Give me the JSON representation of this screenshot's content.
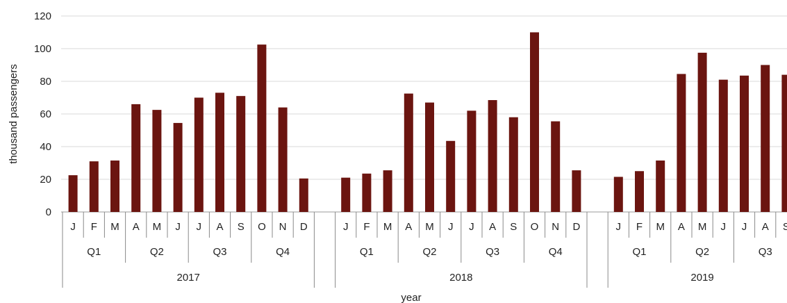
{
  "chart_data": {
    "type": "bar",
    "title": "",
    "xlabel": "year",
    "ylabel": "thousand passengers",
    "ylim": [
      0,
      120
    ],
    "yticks": [
      0,
      20,
      40,
      60,
      80,
      100,
      120
    ],
    "grid": true,
    "bar_color": "#6b1510",
    "grid_color": "#d9d9d9",
    "years": [
      {
        "label": "2017",
        "quarters": [
          {
            "label": "Q1",
            "months": [
              {
                "label": "J",
                "value": 22.5
              },
              {
                "label": "F",
                "value": 31
              },
              {
                "label": "M",
                "value": 31.5
              }
            ]
          },
          {
            "label": "Q2",
            "months": [
              {
                "label": "A",
                "value": 66
              },
              {
                "label": "M",
                "value": 62.5
              },
              {
                "label": "J",
                "value": 54.5
              }
            ]
          },
          {
            "label": "Q3",
            "months": [
              {
                "label": "J",
                "value": 70
              },
              {
                "label": "A",
                "value": 73
              },
              {
                "label": "S",
                "value": 71
              }
            ]
          },
          {
            "label": "Q4",
            "months": [
              {
                "label": "O",
                "value": 102.5
              },
              {
                "label": "N",
                "value": 64
              },
              {
                "label": "D",
                "value": 20.5
              }
            ]
          }
        ]
      },
      {
        "label": "2018",
        "quarters": [
          {
            "label": "Q1",
            "months": [
              {
                "label": "J",
                "value": 21
              },
              {
                "label": "F",
                "value": 23.5
              },
              {
                "label": "M",
                "value": 25.5
              }
            ]
          },
          {
            "label": "Q2",
            "months": [
              {
                "label": "A",
                "value": 72.5
              },
              {
                "label": "M",
                "value": 67
              },
              {
                "label": "J",
                "value": 43.5
              }
            ]
          },
          {
            "label": "Q3",
            "months": [
              {
                "label": "J",
                "value": 62
              },
              {
                "label": "A",
                "value": 68.5
              },
              {
                "label": "S",
                "value": 58
              }
            ]
          },
          {
            "label": "Q4",
            "months": [
              {
                "label": "O",
                "value": 110
              },
              {
                "label": "N",
                "value": 55.5
              },
              {
                "label": "D",
                "value": 25.5
              }
            ]
          }
        ]
      },
      {
        "label": "2019",
        "quarters": [
          {
            "label": "Q1",
            "months": [
              {
                "label": "J",
                "value": 21.5
              },
              {
                "label": "F",
                "value": 25
              },
              {
                "label": "M",
                "value": 31.5
              }
            ]
          },
          {
            "label": "Q2",
            "months": [
              {
                "label": "A",
                "value": 84.5
              },
              {
                "label": "M",
                "value": 97.5
              },
              {
                "label": "J",
                "value": 81
              }
            ]
          },
          {
            "label": "Q3",
            "months": [
              {
                "label": "J",
                "value": 83.5
              },
              {
                "label": "A",
                "value": 90
              },
              {
                "label": "S",
                "value": 84
              }
            ]
          }
        ]
      }
    ]
  }
}
